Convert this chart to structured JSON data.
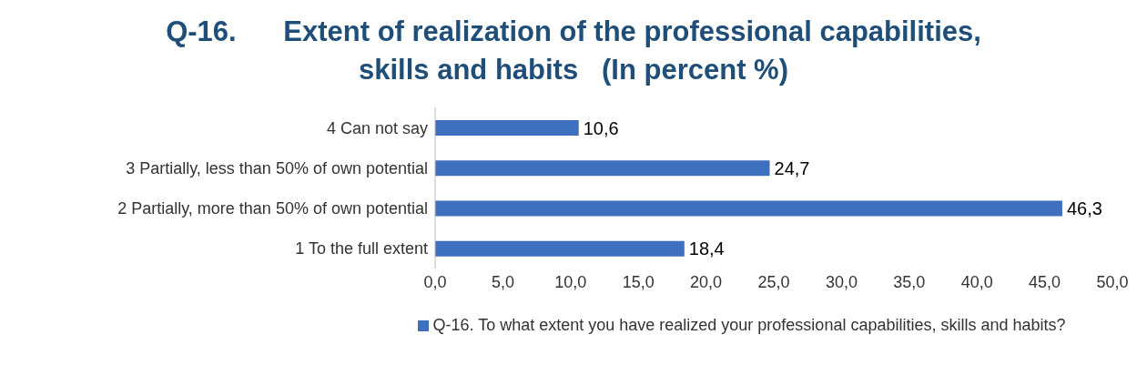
{
  "chart_data": {
    "type": "bar",
    "orientation": "horizontal",
    "title": "Q-16.      Extent of realization of the professional capabilities, skills and habits   (In percent %)",
    "categories": [
      "4 Can not say",
      "3 Partially, less than 50% of own potential",
      "2 Partially, more than 50% of own potential",
      "1 To the full extent"
    ],
    "series": [
      {
        "name": "Q-16.      To what extent you have realized your professional capabilities, skills and habits?",
        "color": "#3f6fbf",
        "values": [
          10.6,
          24.7,
          46.3,
          18.4
        ],
        "value_labels": [
          "10,6",
          "24,7",
          "46,3",
          "18,4"
        ]
      }
    ],
    "xlim": [
      0,
      50
    ],
    "xticks": [
      {
        "value": 0,
        "label": "0,0"
      },
      {
        "value": 5,
        "label": "5,0"
      },
      {
        "value": 10,
        "label": "10,0"
      },
      {
        "value": 15,
        "label": "15,0"
      },
      {
        "value": 20,
        "label": "20,0"
      },
      {
        "value": 25,
        "label": "25,0"
      },
      {
        "value": 30,
        "label": "30,0"
      },
      {
        "value": 35,
        "label": "35,0"
      },
      {
        "value": 40,
        "label": "40,0"
      },
      {
        "value": 45,
        "label": "45,0"
      },
      {
        "value": 50,
        "label": "50,0"
      }
    ],
    "legend": "bottom"
  }
}
